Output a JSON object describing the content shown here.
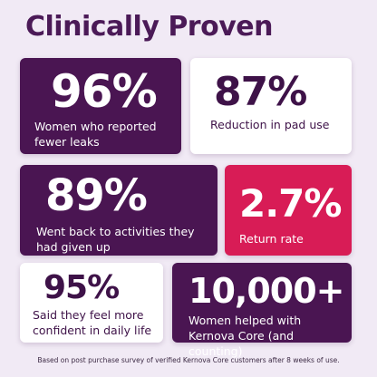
{
  "title": "Clinically Proven",
  "stats": [
    {
      "value": "96%",
      "label": "Women who reported fewer leaks"
    },
    {
      "value": "87%",
      "label": "Reduction in pad use"
    },
    {
      "value": "89%",
      "label": "Went back to activities they had given up"
    },
    {
      "value": "2.7%",
      "label": "Return rate"
    },
    {
      "value": "95%",
      "label": "Said they feel more confident in daily life"
    },
    {
      "value": "10,000+",
      "label": "Women helped with Kernova Core (and counting)"
    }
  ],
  "footnote": "Based on post purchase survey of verified Kernova Core customers after 8 weeks of use."
}
